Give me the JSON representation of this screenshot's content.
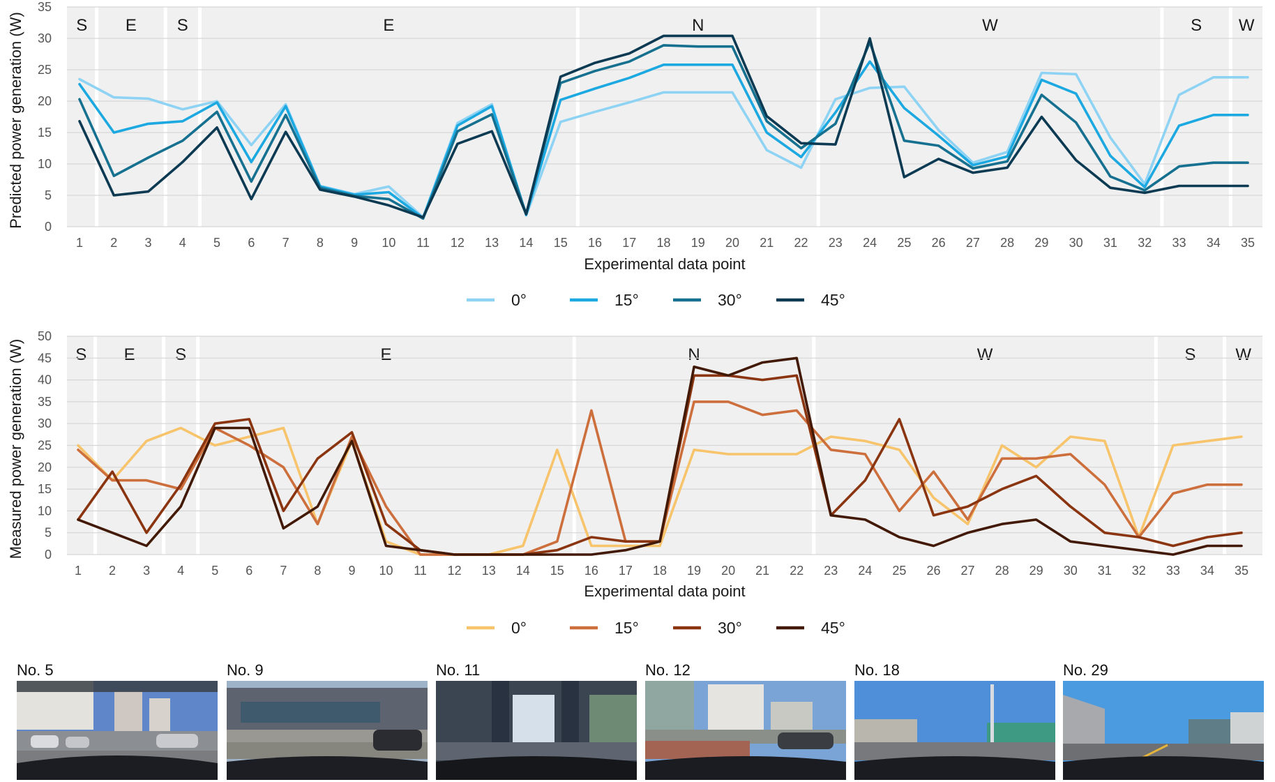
{
  "chart_data": [
    {
      "type": "line",
      "xlabel": "Experimental data point",
      "ylabel": "Predicted power generation (W)",
      "ylim": [
        0,
        35
      ],
      "yticks": [
        0,
        5,
        10,
        15,
        20,
        25,
        30,
        35
      ],
      "categories": [
        "1",
        "2",
        "3",
        "4",
        "5",
        "6",
        "7",
        "8",
        "9",
        "10",
        "11",
        "12",
        "13",
        "14",
        "15",
        "16",
        "17",
        "18",
        "19",
        "20",
        "21",
        "22",
        "23",
        "24",
        "25",
        "26",
        "27",
        "28",
        "29",
        "30",
        "31",
        "32",
        "33",
        "34",
        "35"
      ],
      "direction_segments": [
        {
          "label": "S",
          "from": 1,
          "to": 1
        },
        {
          "label": "E",
          "from": 2,
          "to": 3
        },
        {
          "label": "S",
          "from": 4,
          "to": 4
        },
        {
          "label": "E",
          "from": 5,
          "to": 15
        },
        {
          "label": "N",
          "from": 16,
          "to": 22
        },
        {
          "label": "W",
          "from": 23,
          "to": 32
        },
        {
          "label": "S",
          "from": 33,
          "to": 34
        },
        {
          "label": "W",
          "from": 35,
          "to": 35
        }
      ],
      "legend_position": "bottom-center",
      "grid": true,
      "series": [
        {
          "name": "0°",
          "color": "#8fd3f4",
          "values": [
            23.5,
            20.6,
            20.4,
            18.7,
            20.0,
            13.0,
            19.5,
            6.5,
            5.2,
            6.4,
            1.5,
            16.5,
            19.5,
            1.8,
            16.7,
            18.3,
            19.8,
            21.4,
            21.4,
            21.4,
            12.2,
            9.4,
            20.3,
            22.1,
            22.3,
            15.4,
            10.2,
            11.9,
            24.5,
            24.3,
            14.2,
            6.8,
            21.0,
            23.8,
            23.8
          ]
        },
        {
          "name": "15°",
          "color": "#1ca8e0",
          "values": [
            22.7,
            15.0,
            16.4,
            16.8,
            19.8,
            10.3,
            19.2,
            6.4,
            5.1,
            5.5,
            1.4,
            16.1,
            19.2,
            1.9,
            20.2,
            22.0,
            23.7,
            25.8,
            25.8,
            25.8,
            15.0,
            11.1,
            18.2,
            26.3,
            18.9,
            14.5,
            9.8,
            11.2,
            23.4,
            21.2,
            11.3,
            6.3,
            16.1,
            17.8,
            17.8
          ]
        },
        {
          "name": "30°",
          "color": "#16708f",
          "values": [
            20.3,
            8.1,
            11.0,
            13.7,
            18.3,
            7.2,
            17.8,
            6.2,
            4.9,
            4.4,
            1.3,
            15.2,
            17.9,
            2.0,
            22.9,
            24.8,
            26.3,
            28.9,
            28.7,
            28.7,
            16.8,
            12.5,
            16.4,
            29.4,
            13.7,
            12.9,
            9.3,
            10.4,
            21.0,
            16.6,
            8.0,
            5.8,
            9.6,
            10.2,
            10.2
          ]
        },
        {
          "name": "45°",
          "color": "#0c3a52",
          "values": [
            16.8,
            5.0,
            5.6,
            10.3,
            15.8,
            4.4,
            15.1,
            5.9,
            4.8,
            3.4,
            1.5,
            13.2,
            15.2,
            2.0,
            23.9,
            26.1,
            27.6,
            30.4,
            30.4,
            30.4,
            17.6,
            13.3,
            13.1,
            30.0,
            7.9,
            10.8,
            8.6,
            9.4,
            17.5,
            10.6,
            6.2,
            5.4,
            6.5,
            6.5,
            6.5
          ]
        }
      ]
    },
    {
      "type": "line",
      "xlabel": "Experimental data point",
      "ylabel": "Measured power generation (W)",
      "ylim": [
        0,
        50
      ],
      "yticks": [
        0,
        5,
        10,
        15,
        20,
        25,
        30,
        35,
        40,
        45,
        50
      ],
      "categories": [
        "1",
        "2",
        "3",
        "4",
        "5",
        "6",
        "7",
        "8",
        "9",
        "10",
        "11",
        "12",
        "13",
        "14",
        "15",
        "16",
        "17",
        "18",
        "19",
        "20",
        "21",
        "22",
        "23",
        "24",
        "25",
        "26",
        "27",
        "28",
        "29",
        "30",
        "31",
        "32",
        "33",
        "34",
        "35"
      ],
      "direction_segments": [
        {
          "label": "S",
          "from": 1,
          "to": 1
        },
        {
          "label": "E",
          "from": 2,
          "to": 3
        },
        {
          "label": "S",
          "from": 4,
          "to": 4
        },
        {
          "label": "E",
          "from": 5,
          "to": 15
        },
        {
          "label": "N",
          "from": 16,
          "to": 22
        },
        {
          "label": "W",
          "from": 23,
          "to": 32
        },
        {
          "label": "S",
          "from": 33,
          "to": 34
        },
        {
          "label": "W",
          "from": 35,
          "to": 35
        }
      ],
      "legend_position": "bottom-center",
      "grid": true,
      "series": [
        {
          "name": "0°",
          "color": "#f7c46c",
          "values": [
            25,
            17,
            26,
            29,
            25,
            27,
            29,
            7,
            26,
            3,
            0,
            0,
            0,
            2,
            24,
            2,
            2,
            2,
            24,
            23,
            23,
            23,
            27,
            26,
            24,
            13,
            7,
            25,
            20,
            27,
            26,
            4,
            25,
            26,
            27
          ]
        },
        {
          "name": "15°",
          "color": "#cd6f3c",
          "values": [
            24,
            17,
            17,
            15,
            29,
            25,
            20,
            7,
            27,
            11,
            0,
            0,
            0,
            0,
            3,
            33,
            3,
            3,
            35,
            35,
            32,
            33,
            24,
            23,
            10,
            19,
            8,
            22,
            22,
            23,
            16,
            4,
            14,
            16,
            16
          ]
        },
        {
          "name": "30°",
          "color": "#8a3510",
          "values": [
            8,
            19,
            5,
            16,
            30,
            31,
            10,
            22,
            28,
            7,
            1,
            0,
            0,
            0,
            1,
            4,
            3,
            3,
            41,
            41,
            40,
            41,
            9,
            17,
            31,
            9,
            11,
            15,
            18,
            11,
            5,
            4,
            2,
            4,
            5
          ]
        },
        {
          "name": "45°",
          "color": "#421905",
          "values": [
            8,
            5,
            2,
            11,
            29,
            29,
            6,
            11,
            26,
            2,
            1,
            0,
            0,
            0,
            0,
            0,
            1,
            3,
            43,
            41,
            44,
            45,
            9,
            8,
            4,
            2,
            5,
            7,
            8,
            3,
            2,
            1,
            0,
            2,
            2
          ]
        }
      ]
    }
  ],
  "photos": [
    {
      "label": "No. 5"
    },
    {
      "label": "No. 9"
    },
    {
      "label": "No. 11"
    },
    {
      "label": "No. 12"
    },
    {
      "label": "No. 18"
    },
    {
      "label": "No. 29"
    }
  ]
}
